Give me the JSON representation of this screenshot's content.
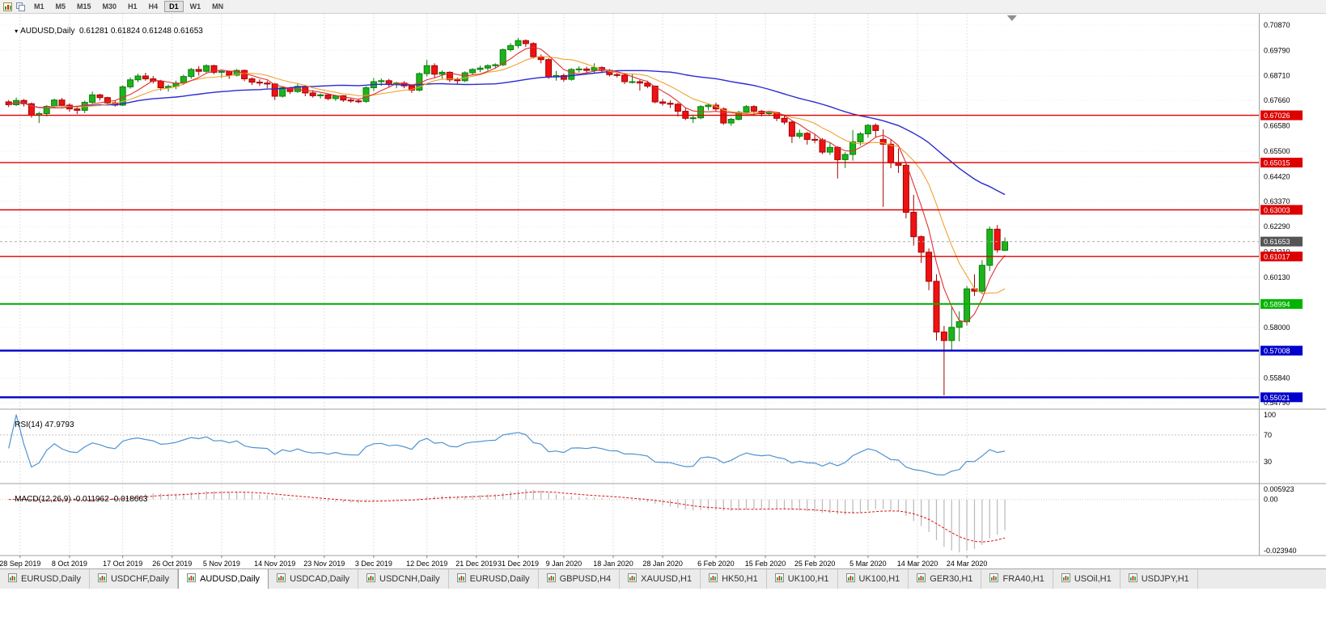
{
  "toolbar": {
    "timeframes": [
      "M1",
      "M5",
      "M15",
      "M30",
      "H1",
      "H4",
      "D1",
      "W1",
      "MN"
    ],
    "active": "D1"
  },
  "chart": {
    "symbol_label": "AUDUSD,Daily",
    "ohlc_text": "0.61281 0.61824 0.61248 0.61653",
    "one_click_arrow": "▾"
  },
  "price_axis": {
    "labels": [
      "0.70870",
      "0.69790",
      "0.68710",
      "0.67660",
      "0.66580",
      "0.65500",
      "0.64420",
      "0.63370",
      "0.62290",
      "0.61210",
      "0.60130",
      "0.59050",
      "0.58000",
      "0.56920",
      "0.55840",
      "0.54790"
    ],
    "current": {
      "label": "0.61653",
      "price": 0.61653,
      "bg": "#555555"
    }
  },
  "indicators": {
    "rsi": {
      "label_text": "RSI(14) 47.9793",
      "period": 14,
      "levels": [
        "100",
        "70",
        "30"
      ],
      "level_values": [
        100,
        70,
        30
      ],
      "color": "#4f93d0"
    },
    "macd": {
      "label_text": "MACD(12,26,9) -0.011962 -0.018663",
      "fast": 12,
      "slow": 26,
      "signal": 9,
      "axis_top": "0.005923",
      "axis_zero": "0.00",
      "axis_bottom": "-0.023940",
      "bar_color": "#b9b9b9",
      "signal_color": "#dd1111"
    }
  },
  "chart_data": {
    "type": "candlestick",
    "symbol": "AUDUSD",
    "timeframe": "Daily",
    "ylim": [
      0.54516,
      0.71352
    ],
    "colors": {
      "up": "#1db31d",
      "up_stroke": "#0b7d0b",
      "down": "#ee1212",
      "down_stroke": "#a50000",
      "grid_v": "#e2e2e2",
      "grid_h": "#efefef",
      "separator": "#a0a0a0",
      "axis_text": "#000000"
    },
    "ma": [
      {
        "period": 34,
        "color": "#2a2ad4",
        "width": 1.4,
        "name": "MA-slow"
      },
      {
        "period": 10,
        "color": "#f0a231",
        "width": 1.1,
        "name": "MA-mid"
      },
      {
        "period": 5,
        "color": "#e03030",
        "width": 1.1,
        "name": "MA-fast"
      }
    ],
    "hlines": [
      {
        "price": 0.67026,
        "label": "0.67026",
        "color": "#dd0000",
        "width": 1.4
      },
      {
        "price": 0.65015,
        "label": "0.65015",
        "color": "#dd0000",
        "width": 1.4
      },
      {
        "price": 0.63003,
        "label": "0.63003",
        "color": "#dd0000",
        "width": 1.4
      },
      {
        "price": 0.61017,
        "label": "0.61017",
        "color": "#dd0000",
        "width": 1.4
      },
      {
        "price": 0.58994,
        "label": "0.58994",
        "color": "#00b400",
        "width": 2
      },
      {
        "price": 0.57008,
        "label": "0.57008",
        "color": "#0000cc",
        "width": 2.4
      },
      {
        "price": 0.55021,
        "label": "0.55021",
        "color": "#0000cc",
        "width": 2.4
      }
    ],
    "x_labels": [
      {
        "label": "28 Sep 2019",
        "i": 1.5
      },
      {
        "label": "8 Oct 2019",
        "i": 8
      },
      {
        "label": "17 Oct 2019",
        "i": 15
      },
      {
        "label": "26 Oct 2019",
        "i": 21.5
      },
      {
        "label": "5 Nov 2019",
        "i": 28
      },
      {
        "label": "14 Nov 2019",
        "i": 35
      },
      {
        "label": "23 Nov 2019",
        "i": 41.5
      },
      {
        "label": "3 Dec 2019",
        "i": 48
      },
      {
        "label": "12 Dec 2019",
        "i": 55
      },
      {
        "label": "21 Dec 2019",
        "i": 61.5
      },
      {
        "label": "31 Dec 2019",
        "i": 67
      },
      {
        "label": "9 Jan 2020",
        "i": 73
      },
      {
        "label": "18 Jan 2020",
        "i": 79.5
      },
      {
        "label": "28 Jan 2020",
        "i": 86
      },
      {
        "label": "6 Feb 2020",
        "i": 93
      },
      {
        "label": "15 Feb 2020",
        "i": 99.5
      },
      {
        "label": "25 Feb 2020",
        "i": 106
      },
      {
        "label": "5 Mar 2020",
        "i": 113
      },
      {
        "label": "14 Mar 2020",
        "i": 119.5
      },
      {
        "label": "24 Mar 2020",
        "i": 126
      }
    ],
    "candles": [
      [
        0.676,
        0.6768,
        0.6738,
        0.6748
      ],
      [
        0.6748,
        0.6779,
        0.6742,
        0.6766
      ],
      [
        0.6766,
        0.6772,
        0.674,
        0.6752
      ],
      [
        0.6752,
        0.6758,
        0.6693,
        0.6703
      ],
      [
        0.6703,
        0.6718,
        0.667,
        0.671
      ],
      [
        0.671,
        0.6746,
        0.6698,
        0.6741
      ],
      [
        0.6741,
        0.6774,
        0.6732,
        0.6768
      ],
      [
        0.6768,
        0.6776,
        0.6738,
        0.6746
      ],
      [
        0.6746,
        0.6754,
        0.6718,
        0.673
      ],
      [
        0.673,
        0.674,
        0.6708,
        0.6724
      ],
      [
        0.6724,
        0.6765,
        0.6712,
        0.6758
      ],
      [
        0.6758,
        0.6804,
        0.6752,
        0.679
      ],
      [
        0.679,
        0.6794,
        0.6766,
        0.6778
      ],
      [
        0.6778,
        0.6782,
        0.6744,
        0.6756
      ],
      [
        0.6756,
        0.6768,
        0.674,
        0.6746
      ],
      [
        0.6746,
        0.683,
        0.6742,
        0.6824
      ],
      [
        0.6824,
        0.6864,
        0.6816,
        0.6854
      ],
      [
        0.6854,
        0.688,
        0.6844,
        0.687
      ],
      [
        0.687,
        0.6884,
        0.685,
        0.6858
      ],
      [
        0.6858,
        0.687,
        0.6838,
        0.6848
      ],
      [
        0.6848,
        0.6854,
        0.6808,
        0.682
      ],
      [
        0.682,
        0.6834,
        0.6804,
        0.6826
      ],
      [
        0.6826,
        0.685,
        0.6814,
        0.684
      ],
      [
        0.684,
        0.6876,
        0.6832,
        0.6868
      ],
      [
        0.6868,
        0.6905,
        0.6858,
        0.6898
      ],
      [
        0.6898,
        0.6912,
        0.6872,
        0.689
      ],
      [
        0.689,
        0.692,
        0.6884,
        0.6914
      ],
      [
        0.6914,
        0.6918,
        0.6878,
        0.6886
      ],
      [
        0.6886,
        0.6896,
        0.6862,
        0.689
      ],
      [
        0.689,
        0.6894,
        0.6858,
        0.6874
      ],
      [
        0.6874,
        0.69,
        0.6868,
        0.6894
      ],
      [
        0.6894,
        0.6898,
        0.6848,
        0.6858
      ],
      [
        0.6858,
        0.6864,
        0.6832,
        0.6844
      ],
      [
        0.6844,
        0.6856,
        0.6828,
        0.684
      ],
      [
        0.684,
        0.685,
        0.6818,
        0.6836
      ],
      [
        0.6836,
        0.684,
        0.6768,
        0.6784
      ],
      [
        0.6784,
        0.6826,
        0.6778,
        0.682
      ],
      [
        0.682,
        0.6824,
        0.6794,
        0.6804
      ],
      [
        0.6804,
        0.6836,
        0.6798,
        0.6826
      ],
      [
        0.6826,
        0.683,
        0.6784,
        0.6798
      ],
      [
        0.6798,
        0.681,
        0.6778,
        0.6786
      ],
      [
        0.6786,
        0.6796,
        0.6774,
        0.679
      ],
      [
        0.679,
        0.6792,
        0.6768,
        0.6774
      ],
      [
        0.6774,
        0.679,
        0.6764,
        0.6786
      ],
      [
        0.6786,
        0.6788,
        0.676,
        0.6768
      ],
      [
        0.6768,
        0.6776,
        0.6756,
        0.6764
      ],
      [
        0.6764,
        0.6774,
        0.6754,
        0.6762
      ],
      [
        0.6762,
        0.6826,
        0.6756,
        0.682
      ],
      [
        0.682,
        0.6862,
        0.6806,
        0.6846
      ],
      [
        0.6846,
        0.686,
        0.6828,
        0.685
      ],
      [
        0.685,
        0.6858,
        0.6824,
        0.6834
      ],
      [
        0.6834,
        0.6846,
        0.6818,
        0.684
      ],
      [
        0.684,
        0.6848,
        0.6818,
        0.6828
      ],
      [
        0.6828,
        0.6834,
        0.6798,
        0.681
      ],
      [
        0.681,
        0.6886,
        0.6804,
        0.688
      ],
      [
        0.688,
        0.6939,
        0.6868,
        0.6914
      ],
      [
        0.6914,
        0.6924,
        0.6862,
        0.6878
      ],
      [
        0.6878,
        0.6894,
        0.6858,
        0.6886
      ],
      [
        0.6886,
        0.689,
        0.6844,
        0.6854
      ],
      [
        0.6854,
        0.6864,
        0.6836,
        0.685
      ],
      [
        0.685,
        0.689,
        0.6844,
        0.6884
      ],
      [
        0.6884,
        0.6904,
        0.6874,
        0.6898
      ],
      [
        0.6898,
        0.6914,
        0.6886,
        0.6904
      ],
      [
        0.6904,
        0.692,
        0.6894,
        0.6914
      ],
      [
        0.6914,
        0.6924,
        0.6902,
        0.6918
      ],
      [
        0.6918,
        0.6988,
        0.6912,
        0.6982
      ],
      [
        0.6982,
        0.701,
        0.6974,
        0.7
      ],
      [
        0.7,
        0.7032,
        0.6988,
        0.7021
      ],
      [
        0.7021,
        0.7026,
        0.6994,
        0.7008
      ],
      [
        0.7008,
        0.7014,
        0.6944,
        0.6952
      ],
      [
        0.6952,
        0.6962,
        0.6924,
        0.694
      ],
      [
        0.694,
        0.6946,
        0.6858,
        0.6866
      ],
      [
        0.6866,
        0.6892,
        0.685,
        0.6872
      ],
      [
        0.6872,
        0.688,
        0.6846,
        0.6856
      ],
      [
        0.6856,
        0.6904,
        0.685,
        0.6898
      ],
      [
        0.6898,
        0.6912,
        0.6884,
        0.69
      ],
      [
        0.69,
        0.691,
        0.6878,
        0.6894
      ],
      [
        0.6894,
        0.6924,
        0.6884,
        0.6906
      ],
      [
        0.6906,
        0.6912,
        0.6882,
        0.6894
      ],
      [
        0.6894,
        0.69,
        0.6868,
        0.6876
      ],
      [
        0.6876,
        0.6886,
        0.6864,
        0.6874
      ],
      [
        0.6874,
        0.6878,
        0.6836,
        0.6846
      ],
      [
        0.6846,
        0.688,
        0.6838,
        0.6846
      ],
      [
        0.6846,
        0.6854,
        0.6808,
        0.684
      ],
      [
        0.684,
        0.685,
        0.6818,
        0.6827
      ],
      [
        0.6827,
        0.683,
        0.6754,
        0.676
      ],
      [
        0.676,
        0.6772,
        0.6744,
        0.6754
      ],
      [
        0.6754,
        0.6766,
        0.6734,
        0.675
      ],
      [
        0.675,
        0.6756,
        0.6698,
        0.672
      ],
      [
        0.672,
        0.6734,
        0.6682,
        0.669
      ],
      [
        0.669,
        0.6706,
        0.667,
        0.6692
      ],
      [
        0.6692,
        0.6746,
        0.6686,
        0.674
      ],
      [
        0.674,
        0.6752,
        0.6724,
        0.6746
      ],
      [
        0.6746,
        0.6756,
        0.672,
        0.673
      ],
      [
        0.673,
        0.6736,
        0.6662,
        0.667
      ],
      [
        0.667,
        0.6692,
        0.6658,
        0.6686
      ],
      [
        0.6686,
        0.6722,
        0.668,
        0.6716
      ],
      [
        0.6716,
        0.6746,
        0.671,
        0.674
      ],
      [
        0.674,
        0.6746,
        0.6708,
        0.672
      ],
      [
        0.672,
        0.6726,
        0.6698,
        0.671
      ],
      [
        0.671,
        0.6722,
        0.67,
        0.6714
      ],
      [
        0.6714,
        0.6718,
        0.6678,
        0.669
      ],
      [
        0.669,
        0.67,
        0.6664,
        0.6674
      ],
      [
        0.6674,
        0.668,
        0.6585,
        0.6614
      ],
      [
        0.6614,
        0.6642,
        0.6604,
        0.6626
      ],
      [
        0.6626,
        0.6632,
        0.6578,
        0.66
      ],
      [
        0.66,
        0.662,
        0.6584,
        0.6598
      ],
      [
        0.6598,
        0.6606,
        0.6538,
        0.6546
      ],
      [
        0.6546,
        0.6586,
        0.6534,
        0.6566
      ],
      [
        0.6566,
        0.6572,
        0.6434,
        0.6514
      ],
      [
        0.6514,
        0.6546,
        0.6478,
        0.6536
      ],
      [
        0.6536,
        0.664,
        0.651,
        0.659
      ],
      [
        0.659,
        0.6632,
        0.6574,
        0.6624
      ],
      [
        0.6624,
        0.6666,
        0.6608,
        0.666
      ],
      [
        0.666,
        0.6668,
        0.6608,
        0.6638
      ],
      [
        0.66,
        0.6642,
        0.6313,
        0.658
      ],
      [
        0.658,
        0.6602,
        0.6478,
        0.65
      ],
      [
        0.65,
        0.6562,
        0.6458,
        0.649
      ],
      [
        0.649,
        0.6496,
        0.6264,
        0.629
      ],
      [
        0.629,
        0.6364,
        0.6148,
        0.6186
      ],
      [
        0.6186,
        0.6192,
        0.6074,
        0.612
      ],
      [
        0.612,
        0.6136,
        0.5958,
        0.5996
      ],
      [
        0.5996,
        0.6026,
        0.5744,
        0.578
      ],
      [
        0.578,
        0.5806,
        0.551,
        0.5744
      ],
      [
        0.5744,
        0.5886,
        0.5704,
        0.58
      ],
      [
        0.58,
        0.5868,
        0.574,
        0.5824
      ],
      [
        0.5824,
        0.5976,
        0.5808,
        0.5964
      ],
      [
        0.5964,
        0.6026,
        0.5934,
        0.5954
      ],
      [
        0.5954,
        0.6086,
        0.5944,
        0.6064
      ],
      [
        0.6064,
        0.6229,
        0.604,
        0.6218
      ],
      [
        0.6218,
        0.6236,
        0.6118,
        0.613
      ],
      [
        0.61281,
        0.61824,
        0.61248,
        0.61653
      ]
    ]
  },
  "tabs": {
    "active_index": 2,
    "items": [
      "EURUSD,Daily",
      "USDCHF,Daily",
      "AUDUSD,Daily",
      "USDCAD,Daily",
      "USDCNH,Daily",
      "EURUSD,Daily",
      "GBPUSD,H4",
      "XAUUSD,H1",
      "HK50,H1",
      "UK100,H1",
      "UK100,H1",
      "GER30,H1",
      "FRA40,H1",
      "USOil,H1",
      "USDJPY,H1"
    ]
  }
}
